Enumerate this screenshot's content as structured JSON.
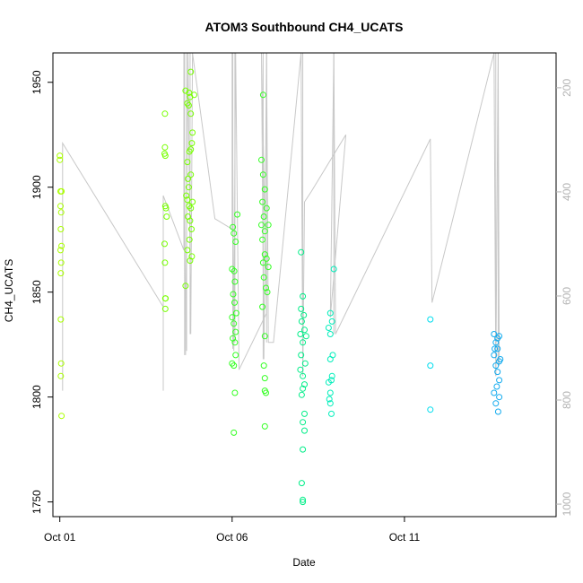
{
  "chart_data": {
    "type": "scatter",
    "title": "ATOM3 Southbound CH4_UCATS",
    "xlabel": "Date",
    "ylabel": "CH4_UCATS",
    "x_ticks": [
      {
        "label": "Oct 01",
        "day": 1
      },
      {
        "label": "Oct 06",
        "day": 6
      },
      {
        "label": "Oct 11",
        "day": 11
      }
    ],
    "xlim_days": [
      0.8,
      15.4
    ],
    "ylim": [
      1743,
      1964
    ],
    "y_ticks": [
      1750,
      1800,
      1850,
      1900,
      1950
    ],
    "y2_label": "",
    "y2_ticks": [
      200,
      400,
      600,
      800,
      1000
    ],
    "y2lim": [
      1024,
      133
    ],
    "y2_color": "#b3b3b3",
    "grid": false,
    "series": [
      {
        "color": "#aaff00",
        "points": [
          [
            1.0,
            1915
          ],
          [
            1.0,
            1913
          ],
          [
            1.02,
            1898
          ],
          [
            1.05,
            1898
          ],
          [
            1.02,
            1891
          ],
          [
            1.04,
            1888
          ],
          [
            1.03,
            1880
          ],
          [
            1.05,
            1872
          ],
          [
            1.02,
            1870
          ],
          [
            1.04,
            1864
          ],
          [
            1.03,
            1859
          ],
          [
            1.03,
            1837
          ],
          [
            1.04,
            1816
          ],
          [
            1.03,
            1810
          ],
          [
            1.05,
            1791
          ]
        ],
        "line": [
          [
            1.08,
            1921
          ],
          [
            4.0,
            1843
          ],
          [
            4.2,
            1870
          ],
          [
            4.65,
            1896
          ]
        ]
      },
      {
        "color": "#77ff00",
        "points": [
          [
            4.05,
            1935
          ],
          [
            4.05,
            1919
          ],
          [
            4.04,
            1916
          ],
          [
            4.06,
            1915
          ],
          [
            4.06,
            1891
          ],
          [
            4.08,
            1890
          ],
          [
            4.1,
            1886
          ],
          [
            4.04,
            1873
          ],
          [
            4.05,
            1864
          ],
          [
            4.06,
            1847
          ],
          [
            4.07,
            1847
          ],
          [
            4.06,
            1842
          ],
          [
            4.65,
            1946
          ],
          [
            4.75,
            1945
          ],
          [
            4.9,
            1944
          ],
          [
            4.78,
            1943
          ],
          [
            4.7,
            1940
          ],
          [
            4.74,
            1939
          ],
          [
            4.8,
            1935
          ],
          [
            4.85,
            1926
          ],
          [
            4.83,
            1921
          ],
          [
            4.8,
            1918
          ],
          [
            4.76,
            1917
          ],
          [
            4.7,
            1912
          ],
          [
            4.72,
            1904
          ],
          [
            4.8,
            1906
          ],
          [
            4.74,
            1900
          ],
          [
            4.67,
            1896
          ],
          [
            4.7,
            1894
          ],
          [
            4.75,
            1891
          ],
          [
            4.8,
            1890
          ],
          [
            4.85,
            1893
          ],
          [
            4.72,
            1886
          ],
          [
            4.78,
            1884
          ],
          [
            4.82,
            1880
          ],
          [
            4.76,
            1875
          ],
          [
            4.7,
            1870
          ],
          [
            4.78,
            1865
          ],
          [
            4.83,
            1867
          ],
          [
            4.65,
            1853
          ],
          [
            4.8,
            1955
          ]
        ],
        "line": [
          [
            4.05,
            1896
          ],
          [
            4.6,
            1843
          ]
        ]
      },
      {
        "color": "#33ff22",
        "points": [
          [
            6.02,
            1881
          ],
          [
            6.05,
            1878
          ],
          [
            6.1,
            1874
          ],
          [
            6.0,
            1861
          ],
          [
            6.06,
            1860
          ],
          [
            6.08,
            1855
          ],
          [
            6.03,
            1849
          ],
          [
            6.07,
            1845
          ],
          [
            6.12,
            1840
          ],
          [
            6.0,
            1838
          ],
          [
            6.05,
            1835
          ],
          [
            6.1,
            1831
          ],
          [
            6.02,
            1828
          ],
          [
            6.08,
            1826
          ],
          [
            6.0,
            1816
          ],
          [
            6.05,
            1815
          ],
          [
            6.1,
            1820
          ],
          [
            6.08,
            1802
          ],
          [
            6.05,
            1783
          ],
          [
            6.15,
            1887
          ],
          [
            6.9,
            1944
          ],
          [
            6.85,
            1913
          ],
          [
            6.9,
            1906
          ],
          [
            6.95,
            1899
          ],
          [
            6.88,
            1893
          ],
          [
            7.0,
            1890
          ],
          [
            6.92,
            1886
          ],
          [
            6.85,
            1882
          ],
          [
            6.95,
            1879
          ],
          [
            7.05,
            1882
          ],
          [
            6.88,
            1875
          ],
          [
            6.95,
            1868
          ],
          [
            7.0,
            1866
          ],
          [
            6.9,
            1864
          ],
          [
            7.05,
            1862
          ],
          [
            6.92,
            1857
          ],
          [
            6.98,
            1852
          ],
          [
            7.02,
            1850
          ],
          [
            6.88,
            1843
          ],
          [
            6.95,
            1829
          ],
          [
            6.92,
            1815
          ],
          [
            6.95,
            1809
          ],
          [
            6.95,
            1803
          ],
          [
            6.98,
            1802
          ],
          [
            6.95,
            1786
          ]
        ]
      },
      {
        "color": "#00ee88",
        "points": [
          [
            8.0,
            1869
          ],
          [
            8.05,
            1848
          ],
          [
            8.0,
            1842
          ],
          [
            8.08,
            1839
          ],
          [
            8.02,
            1836
          ],
          [
            8.1,
            1832
          ],
          [
            7.98,
            1830
          ],
          [
            8.05,
            1826
          ],
          [
            8.0,
            1820
          ],
          [
            8.12,
            1816
          ],
          [
            7.98,
            1813
          ],
          [
            8.05,
            1810
          ],
          [
            8.1,
            1806
          ],
          [
            8.02,
            1801
          ],
          [
            8.1,
            1792
          ],
          [
            8.05,
            1788
          ],
          [
            8.1,
            1784
          ],
          [
            8.05,
            1775
          ],
          [
            8.02,
            1759
          ],
          [
            8.05,
            1751
          ],
          [
            8.05,
            1750
          ],
          [
            8.15,
            1829
          ],
          [
            8.05,
            1804
          ]
        ]
      },
      {
        "color": "#00eebb",
        "points": [
          [
            8.85,
            1840
          ],
          [
            8.9,
            1836
          ],
          [
            8.8,
            1833
          ],
          [
            8.85,
            1830
          ],
          [
            8.92,
            1820
          ],
          [
            8.85,
            1818
          ],
          [
            8.9,
            1810
          ],
          [
            8.88,
            1808
          ],
          [
            8.8,
            1807
          ],
          [
            8.85,
            1802
          ],
          [
            8.82,
            1799
          ],
          [
            8.85,
            1797
          ],
          [
            8.88,
            1792
          ],
          [
            8.95,
            1861
          ]
        ],
        "line": [
          [
            8.1,
            1893
          ],
          [
            8.3,
            1898
          ],
          [
            11.75,
            1923
          ],
          [
            11.8,
            1845
          ],
          [
            13.1,
            1935
          ],
          [
            13.55,
            1964
          ]
        ]
      },
      {
        "color": "#00ddee",
        "points": [
          [
            11.75,
            1837
          ],
          [
            11.75,
            1815
          ],
          [
            11.75,
            1794
          ]
        ]
      },
      {
        "color": "#11aaee",
        "points": [
          [
            13.6,
            1830
          ],
          [
            13.75,
            1829
          ],
          [
            13.65,
            1826
          ],
          [
            13.7,
            1823
          ],
          [
            13.6,
            1820
          ],
          [
            13.75,
            1817
          ],
          [
            13.65,
            1815
          ],
          [
            13.7,
            1812
          ],
          [
            13.75,
            1808
          ],
          [
            13.68,
            1805
          ],
          [
            13.6,
            1802
          ],
          [
            13.75,
            1800
          ],
          [
            13.65,
            1797
          ],
          [
            13.72,
            1793
          ],
          [
            13.62,
            1823
          ],
          [
            13.7,
            1828
          ],
          [
            13.78,
            1818
          ]
        ]
      }
    ],
    "spike_bands": [
      {
        "day": 4.62,
        "from": 1964,
        "to": 1820
      },
      {
        "day": 4.68,
        "from": 1964,
        "to": 1822
      },
      {
        "day": 4.78,
        "from": 1964,
        "to": 1830
      },
      {
        "day": 6.02,
        "from": 1964,
        "to": 1823
      },
      {
        "day": 6.08,
        "from": 1964,
        "to": 1826
      },
      {
        "day": 6.9,
        "from": 1964,
        "to": 1818
      },
      {
        "day": 7.0,
        "from": 1964,
        "to": 1826
      },
      {
        "day": 8.05,
        "from": 1964,
        "to": 1810
      },
      {
        "day": 8.95,
        "from": 1964,
        "to": 1830
      },
      {
        "day": 13.65,
        "from": 1964,
        "to": 1810
      },
      {
        "day": 13.72,
        "from": 1964,
        "to": 1815
      }
    ],
    "trajectory_line": [
      [
        1.08,
        1803
      ],
      [
        1.08,
        1921
      ],
      [
        4.0,
        1843
      ],
      [
        4.0,
        1803
      ],
      [
        4.0,
        1896
      ],
      [
        4.6,
        1870
      ],
      [
        4.6,
        1964
      ],
      [
        4.65,
        1820
      ],
      [
        4.72,
        1964
      ],
      [
        4.8,
        1830
      ],
      [
        4.85,
        1964
      ],
      [
        5.5,
        1885
      ],
      [
        6.0,
        1880
      ],
      [
        6.0,
        1964
      ],
      [
        6.05,
        1822
      ],
      [
        6.1,
        1964
      ],
      [
        6.2,
        1813
      ],
      [
        7.0,
        1840
      ],
      [
        6.85,
        1964
      ],
      [
        6.92,
        1818
      ],
      [
        7.0,
        1964
      ],
      [
        7.05,
        1826
      ],
      [
        7.2,
        1826
      ],
      [
        8.0,
        1964
      ],
      [
        8.05,
        1810
      ],
      [
        8.1,
        1893
      ],
      [
        8.3,
        1898
      ],
      [
        9.3,
        1925
      ],
      [
        8.85,
        1838
      ],
      [
        8.95,
        1964
      ],
      [
        9.0,
        1830
      ],
      [
        11.75,
        1923
      ],
      [
        11.8,
        1845
      ],
      [
        13.6,
        1964
      ],
      [
        13.65,
        1810
      ],
      [
        13.72,
        1964
      ],
      [
        13.75,
        1815
      ]
    ]
  }
}
